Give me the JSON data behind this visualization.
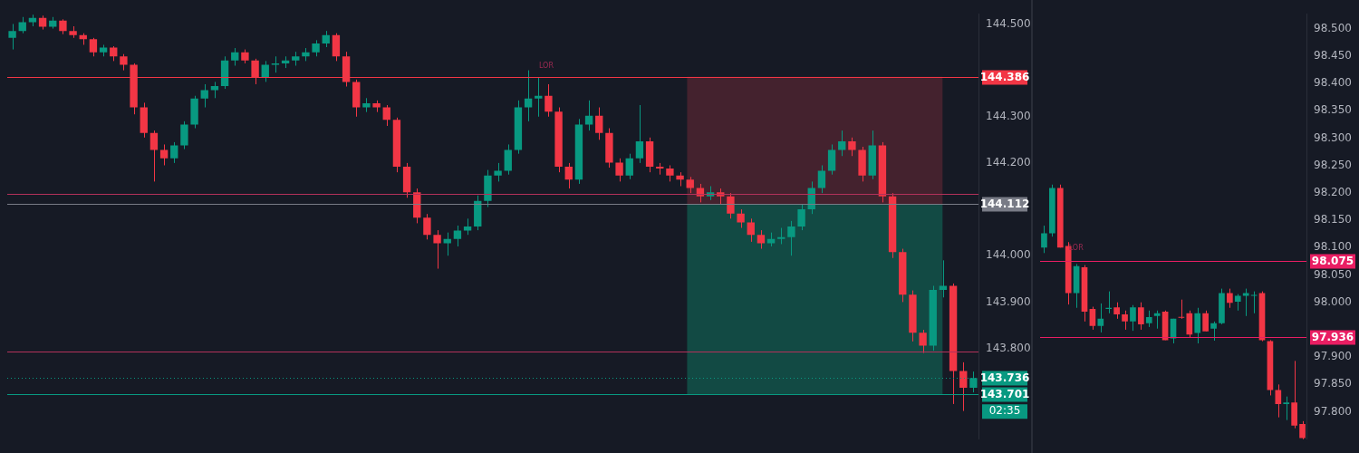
{
  "chart_data": [
    {
      "type": "candlestick",
      "categories": [
        null,
        null,
        null,
        null,
        null,
        null,
        null,
        null,
        null,
        null,
        null,
        null,
        null,
        null,
        null,
        null,
        null,
        null,
        null,
        null,
        null,
        null,
        null,
        null,
        null,
        null,
        null,
        null,
        null,
        null,
        null,
        null,
        null,
        null,
        null,
        null,
        null,
        null,
        null,
        null,
        null,
        null,
        null,
        null,
        null,
        null,
        null,
        null,
        null,
        null,
        null,
        null,
        null,
        null,
        null,
        null,
        null,
        null,
        null,
        null,
        null,
        null,
        null,
        null,
        null,
        null,
        null,
        null,
        null,
        null,
        null,
        null,
        null,
        null,
        null,
        null,
        null,
        null,
        null,
        null,
        null,
        null,
        null,
        null,
        null,
        null,
        null,
        null,
        null,
        null,
        null,
        null,
        null,
        null,
        null,
        null
      ],
      "ohlc": [
        [
          144.47,
          144.5,
          144.445,
          144.485
        ],
        [
          144.485,
          144.515,
          144.48,
          144.504
        ],
        [
          144.504,
          144.52,
          144.495,
          144.513
        ],
        [
          144.513,
          144.518,
          144.488,
          144.494
        ],
        [
          144.494,
          144.515,
          144.49,
          144.507
        ],
        [
          144.507,
          144.51,
          144.478,
          144.485
        ],
        [
          144.485,
          144.495,
          144.47,
          144.476
        ],
        [
          144.476,
          144.48,
          144.455,
          144.467
        ],
        [
          144.467,
          144.47,
          144.43,
          144.439
        ],
        [
          144.439,
          144.455,
          144.43,
          144.449
        ],
        [
          144.449,
          144.452,
          144.42,
          144.43
        ],
        [
          144.43,
          144.435,
          144.4,
          144.412
        ],
        [
          144.412,
          144.415,
          144.305,
          144.32
        ],
        [
          144.32,
          144.33,
          144.255,
          144.265
        ],
        [
          144.265,
          144.27,
          144.16,
          144.228
        ],
        [
          144.228,
          144.24,
          144.195,
          144.21
        ],
        [
          144.21,
          144.245,
          144.2,
          144.238
        ],
        [
          144.238,
          144.29,
          144.23,
          144.283
        ],
        [
          144.283,
          144.345,
          144.275,
          144.339
        ],
        [
          144.339,
          144.37,
          144.32,
          144.357
        ],
        [
          144.357,
          144.375,
          144.34,
          144.366
        ],
        [
          144.366,
          144.43,
          144.36,
          144.421
        ],
        [
          144.421,
          144.448,
          144.41,
          144.439
        ],
        [
          144.439,
          144.445,
          144.415,
          144.421
        ],
        [
          144.421,
          144.425,
          144.37,
          144.384
        ],
        [
          144.384,
          144.42,
          144.375,
          144.412
        ],
        [
          144.412,
          144.43,
          144.395,
          144.415
        ],
        [
          144.415,
          144.43,
          144.405,
          144.421
        ],
        [
          144.421,
          144.44,
          144.41,
          144.43
        ],
        [
          144.43,
          144.448,
          144.42,
          144.439
        ],
        [
          144.439,
          144.465,
          144.43,
          144.458
        ],
        [
          144.458,
          144.485,
          144.45,
          144.476
        ],
        [
          144.476,
          144.48,
          144.42,
          144.43
        ],
        [
          144.43,
          144.44,
          144.365,
          144.375
        ],
        [
          144.375,
          144.38,
          144.3,
          144.32
        ],
        [
          144.32,
          144.34,
          144.31,
          144.329
        ],
        [
          144.329,
          144.335,
          144.31,
          144.32
        ],
        [
          144.32,
          144.325,
          144.28,
          144.293
        ],
        [
          144.293,
          144.298,
          144.18,
          144.192
        ],
        [
          144.192,
          144.2,
          144.125,
          144.137
        ],
        [
          144.137,
          144.145,
          144.07,
          144.082
        ],
        [
          144.082,
          144.09,
          144.035,
          144.045
        ],
        [
          144.045,
          144.055,
          143.972,
          144.027
        ],
        [
          144.027,
          144.05,
          144.0,
          144.036
        ],
        [
          144.036,
          144.065,
          144.02,
          144.054
        ],
        [
          144.054,
          144.08,
          144.045,
          144.063
        ],
        [
          144.063,
          144.13,
          144.055,
          144.118
        ],
        [
          144.118,
          144.185,
          144.105,
          144.173
        ],
        [
          144.173,
          144.2,
          144.16,
          144.183
        ],
        [
          144.183,
          144.24,
          144.175,
          144.228
        ],
        [
          144.228,
          144.335,
          144.22,
          144.32
        ],
        [
          144.32,
          144.4,
          144.29,
          144.339
        ],
        [
          144.339,
          144.385,
          144.3,
          144.345
        ],
        [
          144.345,
          144.37,
          144.3,
          144.311
        ],
        [
          144.311,
          144.32,
          144.18,
          144.192
        ],
        [
          144.192,
          144.2,
          144.145,
          144.164
        ],
        [
          144.164,
          144.295,
          144.155,
          144.283
        ],
        [
          144.283,
          144.335,
          144.27,
          144.302
        ],
        [
          144.302,
          144.32,
          144.25,
          144.265
        ],
        [
          144.265,
          144.275,
          144.19,
          144.201
        ],
        [
          144.201,
          144.21,
          144.16,
          144.173
        ],
        [
          144.173,
          144.22,
          144.165,
          144.21
        ],
        [
          144.21,
          144.325,
          144.2,
          144.247
        ],
        [
          144.247,
          144.255,
          144.18,
          144.192
        ],
        [
          144.192,
          144.2,
          144.175,
          144.188
        ],
        [
          144.188,
          144.195,
          144.16,
          144.173
        ],
        [
          144.173,
          144.18,
          144.15,
          144.164
        ],
        [
          144.164,
          144.17,
          144.135,
          144.146
        ],
        [
          144.146,
          144.155,
          144.115,
          144.128
        ],
        [
          144.128,
          144.15,
          144.12,
          144.137
        ],
        [
          144.137,
          144.145,
          144.11,
          144.128
        ],
        [
          144.128,
          144.135,
          144.08,
          144.091
        ],
        [
          144.091,
          144.1,
          144.06,
          144.072
        ],
        [
          144.072,
          144.08,
          144.03,
          144.045
        ],
        [
          144.045,
          144.055,
          144.015,
          144.027
        ],
        [
          144.027,
          144.05,
          144.02,
          144.036
        ],
        [
          144.036,
          144.06,
          144.025,
          144.04
        ],
        [
          144.04,
          144.075,
          144.0,
          144.063
        ],
        [
          144.063,
          144.11,
          144.055,
          144.1
        ],
        [
          144.1,
          144.16,
          144.09,
          144.146
        ],
        [
          144.146,
          144.195,
          144.135,
          144.183
        ],
        [
          144.183,
          144.24,
          144.175,
          144.228
        ],
        [
          144.228,
          144.27,
          144.215,
          144.247
        ],
        [
          144.247,
          144.255,
          144.215,
          144.228
        ],
        [
          144.228,
          144.235,
          144.16,
          144.173
        ],
        [
          144.173,
          144.27,
          144.165,
          144.238
        ],
        [
          144.238,
          144.245,
          144.115,
          144.128
        ],
        [
          144.128,
          144.135,
          143.995,
          144.008
        ],
        [
          144.008,
          144.015,
          143.9,
          143.916
        ],
        [
          143.916,
          143.925,
          143.815,
          143.834
        ],
        [
          143.834,
          143.84,
          143.79,
          143.806
        ],
        [
          143.806,
          143.935,
          143.795,
          143.926
        ],
        [
          143.926,
          143.99,
          143.91,
          143.935
        ],
        [
          143.935,
          143.94,
          143.68,
          143.751
        ],
        [
          143.751,
          143.77,
          143.665,
          143.715
        ],
        [
          143.715,
          143.75,
          143.705,
          143.736
        ]
      ],
      "colors": [
        "#089981",
        "#089981",
        "#089981",
        "#f23645",
        "#089981",
        "#f23645",
        "#f23645",
        "#f23645",
        "#f23645",
        "#089981",
        "#f23645",
        "#f23645",
        "#f23645",
        "#f23645",
        "#f23645",
        "#f23645",
        "#089981",
        "#089981",
        "#089981",
        "#089981",
        "#089981",
        "#089981",
        "#089981",
        "#f23645",
        "#f23645",
        "#089981",
        "#089981",
        "#089981",
        "#089981",
        "#089981",
        "#089981",
        "#089981",
        "#f23645",
        "#f23645",
        "#f23645",
        "#089981",
        "#f23645",
        "#f23645",
        "#f23645",
        "#f23645",
        "#f23645",
        "#f23645",
        "#f23645",
        "#089981",
        "#089981",
        "#089981",
        "#089981",
        "#089981",
        "#089981",
        "#089981",
        "#089981",
        "#089981",
        "#089981",
        "#f23645",
        "#f23645",
        "#f23645",
        "#089981",
        "#089981",
        "#f23645",
        "#f23645",
        "#f23645",
        "#089981",
        "#089981",
        "#f23645",
        "#f23645",
        "#f23645",
        "#f23645",
        "#f23645",
        "#f23645",
        "#089981",
        "#f23645",
        "#f23645",
        "#f23645",
        "#f23645",
        "#f23645",
        "#089981",
        "#089981",
        "#089981",
        "#089981",
        "#089981",
        "#089981",
        "#089981",
        "#089981",
        "#f23645",
        "#f23645",
        "#089981",
        "#f23645",
        "#f23645",
        "#f23645",
        "#f23645",
        "#f23645",
        "#089981",
        "#089981",
        "#f23645",
        "#f23645",
        "#089981"
      ],
      "ylim": [
        143.604,
        144.522
      ],
      "yticks": [
        {
          "value": 143.8,
          "label": "143.800"
        },
        {
          "value": 143.9,
          "label": "143.900"
        },
        {
          "value": 144.0,
          "label": "144.000"
        },
        {
          "value": 144.2,
          "label": "144.200"
        },
        {
          "value": 144.3,
          "label": "144.300"
        },
        {
          "value": 144.5,
          "label": "144.500"
        }
      ],
      "tick_labels": "y",
      "grid": false,
      "bands": [
        {
          "axis": "y",
          "from": 144.112,
          "to": 144.386,
          "color": "#44222e"
        },
        {
          "axis": "y",
          "from": 143.701,
          "to": 144.112,
          "color": "#124a44"
        }
      ],
      "ref_lines": [
        {
          "axis": "y",
          "value": 144.386,
          "label": "144.386",
          "color": "#f23645"
        },
        {
          "axis": "y",
          "value": 144.133,
          "color": "#b2315a"
        },
        {
          "axis": "y",
          "value": 144.112,
          "label": "144.112",
          "color": "#787b86"
        },
        {
          "axis": "y",
          "value": 143.793,
          "color": "#b2315a"
        },
        {
          "axis": "y",
          "value": 143.736,
          "label": "143.736",
          "color": "#089981",
          "line_style": "dotted"
        },
        {
          "axis": "y",
          "value": 143.701,
          "label": "143.701",
          "color": "#089981"
        }
      ],
      "annotations": [
        "LOR",
        "02:35"
      ]
    },
    {
      "type": "candlestick",
      "categories": [
        null,
        null,
        null,
        null,
        null,
        null,
        null,
        null,
        null,
        null,
        null,
        null,
        null,
        null,
        null,
        null,
        null,
        null,
        null,
        null,
        null,
        null,
        null,
        null,
        null,
        null,
        null,
        null,
        null,
        null,
        null,
        null,
        null
      ],
      "ohlc": [
        [
          98.1,
          98.14,
          98.09,
          98.126
        ],
        [
          98.126,
          98.215,
          98.12,
          98.209
        ],
        [
          98.209,
          98.215,
          98.1,
          98.1
        ],
        [
          98.103,
          98.11,
          97.996,
          98.017
        ],
        [
          98.017,
          98.07,
          97.99,
          98.066
        ],
        [
          98.064,
          98.068,
          97.965,
          97.983
        ],
        [
          97.988,
          97.992,
          97.95,
          97.957
        ],
        [
          97.957,
          97.998,
          97.945,
          97.97
        ],
        [
          97.988,
          98.02,
          97.98,
          97.99
        ],
        [
          97.991,
          98.0,
          97.97,
          97.978
        ],
        [
          97.978,
          97.985,
          97.95,
          97.965
        ],
        [
          97.965,
          97.995,
          97.948,
          97.991
        ],
        [
          97.991,
          98.0,
          97.95,
          97.96
        ],
        [
          97.962,
          97.985,
          97.955,
          97.973
        ],
        [
          97.975,
          97.985,
          97.952,
          97.98
        ],
        [
          97.983,
          97.985,
          97.931,
          97.931
        ],
        [
          97.934,
          97.97,
          97.925,
          97.97
        ],
        [
          97.973,
          98.005,
          97.97,
          97.972
        ],
        [
          97.98,
          97.985,
          97.935,
          97.941
        ],
        [
          97.944,
          97.99,
          97.925,
          97.98
        ],
        [
          97.98,
          97.985,
          97.947,
          97.947
        ],
        [
          97.952,
          97.965,
          97.93,
          97.962
        ],
        [
          97.962,
          98.025,
          97.96,
          98.017
        ],
        [
          98.017,
          98.025,
          97.99,
          97.999
        ],
        [
          98.001,
          98.015,
          97.985,
          98.012
        ],
        [
          98.012,
          98.025,
          97.975,
          98.017
        ],
        [
          98.012,
          98.02,
          97.98,
          98.013
        ],
        [
          98.017,
          98.02,
          97.929,
          97.931
        ],
        [
          97.929,
          97.931,
          97.83,
          97.84
        ],
        [
          97.84,
          97.85,
          97.79,
          97.814
        ],
        [
          97.814,
          97.828,
          97.785,
          97.817
        ],
        [
          97.817,
          97.893,
          97.77,
          97.775
        ],
        [
          97.778,
          97.783,
          97.75,
          97.752
        ]
      ],
      "colors": [
        "#089981",
        "#089981",
        "#f23645",
        "#f23645",
        "#089981",
        "#f23645",
        "#f23645",
        "#089981",
        "#089981",
        "#f23645",
        "#f23645",
        "#089981",
        "#f23645",
        "#089981",
        "#089981",
        "#f23645",
        "#089981",
        "#f23645",
        "#f23645",
        "#089981",
        "#f23645",
        "#089981",
        "#089981",
        "#f23645",
        "#089981",
        "#089981",
        "#089981",
        "#f23645",
        "#f23645",
        "#f23645",
        "#089981",
        "#f23645",
        "#f23645"
      ],
      "ylim": [
        97.75,
        98.527
      ],
      "yticks": [
        {
          "value": 97.8,
          "label": "97.800"
        },
        {
          "value": 97.85,
          "label": "97.850"
        },
        {
          "value": 97.9,
          "label": "97.900"
        },
        {
          "value": 98.0,
          "label": "98.000"
        },
        {
          "value": 98.05,
          "label": "98.050"
        },
        {
          "value": 98.1,
          "label": "98.100"
        },
        {
          "value": 98.15,
          "label": "98.150"
        },
        {
          "value": 98.2,
          "label": "98.200"
        },
        {
          "value": 98.25,
          "label": "98.250"
        },
        {
          "value": 98.3,
          "label": "98.300"
        },
        {
          "value": 98.35,
          "label": "98.350"
        },
        {
          "value": 98.4,
          "label": "98.400"
        },
        {
          "value": 98.45,
          "label": "98.450"
        },
        {
          "value": 98.5,
          "label": "98.500"
        }
      ],
      "tick_labels": "y",
      "grid": false,
      "ref_lines": [
        {
          "axis": "y",
          "value": 98.075,
          "label": "98.075",
          "color": "#e91e63"
        },
        {
          "axis": "y",
          "value": 97.936,
          "label": "97.936",
          "color": "#e91e63"
        }
      ],
      "annotations": [
        "LOR"
      ]
    }
  ]
}
